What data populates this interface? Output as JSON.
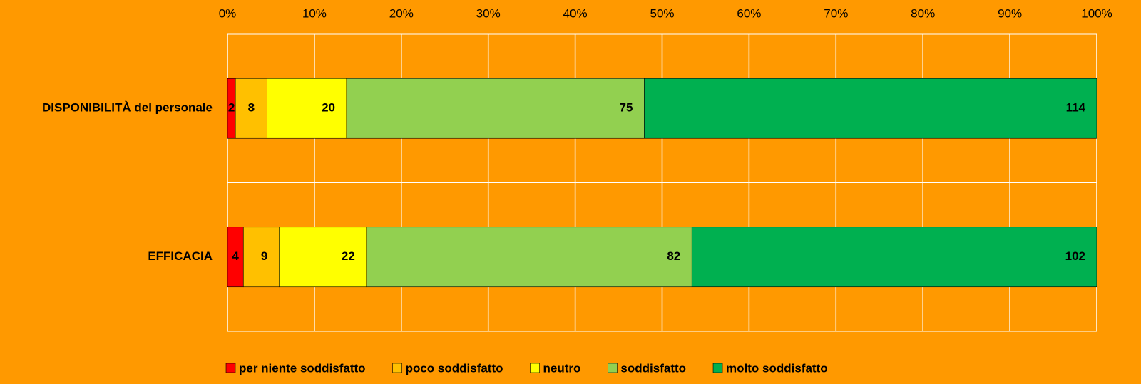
{
  "chart_data": {
    "type": "bar",
    "orientation": "horizontal",
    "stacked": "percent",
    "categories": [
      "DISPONIBILITÀ del personale",
      "EFFICACIA"
    ],
    "series": [
      {
        "name": "per niente soddisfatto",
        "color": "#ff0000",
        "values": [
          2,
          4
        ]
      },
      {
        "name": "poco soddisfatto",
        "color": "#ffc000",
        "values": [
          8,
          9
        ]
      },
      {
        "name": "neutro",
        "color": "#ffff00",
        "values": [
          20,
          22
        ]
      },
      {
        "name": "soddisfatto",
        "color": "#92d050",
        "values": [
          75,
          82
        ]
      },
      {
        "name": "molto soddisfatto",
        "color": "#00b050",
        "values": [
          114,
          102
        ]
      }
    ],
    "xlim": [
      0,
      100
    ],
    "xticks": [
      {
        "value": 0,
        "label": "0%"
      },
      {
        "value": 10,
        "label": "10%"
      },
      {
        "value": 20,
        "label": "20%"
      },
      {
        "value": 30,
        "label": "30%"
      },
      {
        "value": 40,
        "label": "40%"
      },
      {
        "value": 50,
        "label": "50%"
      },
      {
        "value": 60,
        "label": "60%"
      },
      {
        "value": 70,
        "label": "70%"
      },
      {
        "value": 80,
        "label": "80%"
      },
      {
        "value": 90,
        "label": "90%"
      },
      {
        "value": 100,
        "label": "100%"
      }
    ],
    "grid": true,
    "grid_color": "#ffffff",
    "background": "#ff9900",
    "legend": "bottom"
  }
}
